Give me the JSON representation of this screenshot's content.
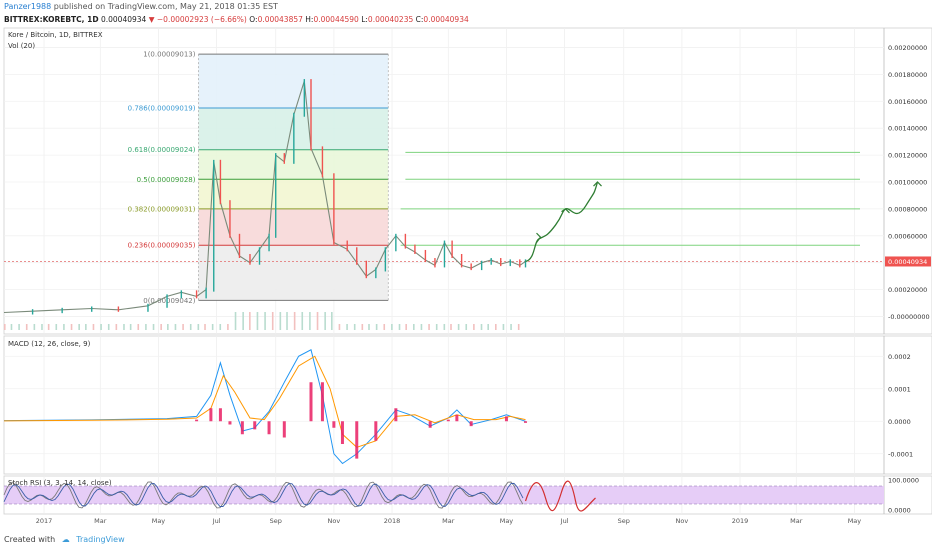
{
  "header": {
    "user": "Panzer1988",
    "published": "published on TradingView.com, May 21, 2018 01:35 EST",
    "symbol": "BITTREX:KOREBTC, 1D",
    "last": "0.00040934",
    "arrow": "▼",
    "change": "−0.00002923 (−6.66%)",
    "o_label": "O:",
    "o": "0.00043857",
    "h_label": "H:",
    "h": "0.00044590",
    "l_label": "L:",
    "l": "0.00040235",
    "c_label": "C:",
    "c": "0.00040934"
  },
  "footer": {
    "created": "Created with",
    "brand": "TradingView"
  },
  "chart_data": [
    {
      "type": "line",
      "title": "Kore / Bitcoin, 1D, BITTREX",
      "sub_label": "Vol (20)",
      "ylim": [
        -0.0001,
        0.0021
      ],
      "y_ticks": [
        "0.00200000",
        "0.00180000",
        "0.00160000",
        "0.00140000",
        "0.00120000",
        "0.00100000",
        "0.00080000",
        "0.00060000",
        "0.00040000",
        "0.00020000",
        "-0.00000000"
      ],
      "y_tick_values": [
        0.002,
        0.0018,
        0.0016,
        0.0014,
        0.0012,
        0.001,
        0.0008,
        0.0006,
        0.0004,
        0.0002,
        0
      ],
      "last_price_label": "0.00040934",
      "last_price": 0.00040934,
      "colors": {
        "candle_up": "#26a69a",
        "candle_down": "#ef5350",
        "last_line": "#e26b6b",
        "green_lines": "#7ed37e",
        "arrow": "#2e7d32"
      },
      "fib_levels": [
        {
          "label": "1(0.00009013)",
          "price": 0.00195,
          "color": "#777777",
          "fill": "#e3f1fb"
        },
        {
          "label": "0.786(0.00009019)",
          "price": 0.00155,
          "color": "#3c9bd3",
          "fill": "#d7f1e8"
        },
        {
          "label": "0.618(0.00009024)",
          "price": 0.00124,
          "color": "#39a871",
          "fill": "#e9f7d9"
        },
        {
          "label": "0.5(0.00009028)",
          "price": 0.00102,
          "color": "#3b9e3b",
          "fill": "#f2f6d2"
        },
        {
          "label": "0.382(0.00009031)",
          "price": 0.0008,
          "color": "#8b9c2a",
          "fill": "#f7d8d8"
        },
        {
          "label": "0.236(0.00009035)",
          "price": 0.00053,
          "color": "#d43b3b",
          "fill": "#ececec"
        },
        {
          "label": "0(0.00009042)",
          "price": 0.00012,
          "color": "#777777",
          "fill": ""
        }
      ],
      "horizontal_lines": [
        0.00122,
        0.00102,
        0.0008,
        0.00053
      ],
      "price_series": [
        [
          "2016-11-20",
          3e-05
        ],
        [
          "2016-12-20",
          4e-05
        ],
        [
          "2017-01-20",
          5e-05
        ],
        [
          "2017-02-20",
          6e-05
        ],
        [
          "2017-03-20",
          5e-05
        ],
        [
          "2017-04-20",
          8e-05
        ],
        [
          "2017-05-10",
          0.00015
        ],
        [
          "2017-05-25",
          0.00018
        ],
        [
          "2017-06-10",
          0.00015
        ],
        [
          "2017-06-20",
          0.0002
        ],
        [
          "2017-06-28",
          0.00115
        ],
        [
          "2017-07-05",
          0.00085
        ],
        [
          "2017-07-15",
          0.0006
        ],
        [
          "2017-07-25",
          0.00045
        ],
        [
          "2017-08-05",
          0.0004
        ],
        [
          "2017-08-15",
          0.0005
        ],
        [
          "2017-08-25",
          0.0006
        ],
        [
          "2017-09-01",
          0.0012
        ],
        [
          "2017-09-10",
          0.00115
        ],
        [
          "2017-09-20",
          0.0015
        ],
        [
          "2017-10-01",
          0.00175
        ],
        [
          "2017-10-08",
          0.00125
        ],
        [
          "2017-10-20",
          0.00105
        ],
        [
          "2017-11-01",
          0.00055
        ],
        [
          "2017-11-15",
          0.0005
        ],
        [
          "2017-11-25",
          0.0004
        ],
        [
          "2017-12-05",
          0.0003
        ],
        [
          "2017-12-15",
          0.00035
        ],
        [
          "2017-12-25",
          0.0005
        ],
        [
          "2018-01-05",
          0.0006
        ],
        [
          "2018-01-15",
          0.00052
        ],
        [
          "2018-01-25",
          0.00048
        ],
        [
          "2018-02-05",
          0.00042
        ],
        [
          "2018-02-15",
          0.00038
        ],
        [
          "2018-02-25",
          0.00055
        ],
        [
          "2018-03-05",
          0.00045
        ],
        [
          "2018-03-15",
          0.00038
        ],
        [
          "2018-03-25",
          0.00036
        ],
        [
          "2018-04-05",
          0.0004
        ],
        [
          "2018-04-15",
          0.00042
        ],
        [
          "2018-04-25",
          0.00039
        ],
        [
          "2018-05-05",
          0.00041
        ],
        [
          "2018-05-15",
          0.00038
        ],
        [
          "2018-05-21",
          0.00041
        ]
      ],
      "x_range": [
        "2016-11-20",
        "2019-06-01"
      ]
    },
    {
      "type": "line",
      "title": "MACD (12, 26, close, 9)",
      "ylim": [
        -0.00015,
        0.00025
      ],
      "y_ticks": [
        "0.0002",
        "0.0001",
        "0.0000",
        "-0.0001"
      ],
      "y_tick_values": [
        0.0002,
        0.0001,
        0,
        -0.0001
      ],
      "colors": {
        "macd": "#2196f3",
        "signal": "#ff9800",
        "hist": "#e91e63"
      },
      "macd_series": [
        [
          "2016-11-20",
          2e-06
        ],
        [
          "2017-02-20",
          4e-06
        ],
        [
          "2017-05-10",
          8e-06
        ],
        [
          "2017-06-10",
          1.5e-05
        ],
        [
          "2017-06-25",
          8e-05
        ],
        [
          "2017-07-05",
          0.00018
        ],
        [
          "2017-07-15",
          8e-05
        ],
        [
          "2017-07-28",
          -3e-05
        ],
        [
          "2017-08-10",
          -2e-05
        ],
        [
          "2017-08-25",
          3e-05
        ],
        [
          "2017-09-10",
          0.00012
        ],
        [
          "2017-09-25",
          0.0002
        ],
        [
          "2017-10-08",
          0.00022
        ],
        [
          "2017-10-20",
          8e-05
        ],
        [
          "2017-11-01",
          -0.0001
        ],
        [
          "2017-11-10",
          -0.00013
        ],
        [
          "2017-11-25",
          -0.0001
        ],
        [
          "2017-12-15",
          -4e-05
        ],
        [
          "2018-01-05",
          3.5e-05
        ],
        [
          "2018-01-20",
          2e-05
        ],
        [
          "2018-02-10",
          -1.5e-05
        ],
        [
          "2018-03-01",
          1e-05
        ],
        [
          "2018-03-10",
          3.5e-05
        ],
        [
          "2018-03-25",
          -1e-05
        ],
        [
          "2018-04-15",
          5e-06
        ],
        [
          "2018-05-01",
          2e-05
        ],
        [
          "2018-05-21",
          0.0
        ]
      ],
      "signal_series": [
        [
          "2016-11-20",
          1e-06
        ],
        [
          "2017-02-20",
          3e-06
        ],
        [
          "2017-05-10",
          6e-06
        ],
        [
          "2017-06-10",
          1e-05
        ],
        [
          "2017-06-25",
          4e-05
        ],
        [
          "2017-07-08",
          0.00014
        ],
        [
          "2017-07-20",
          9e-05
        ],
        [
          "2017-08-05",
          1e-05
        ],
        [
          "2017-08-20",
          5e-06
        ],
        [
          "2017-09-05",
          7e-05
        ],
        [
          "2017-09-25",
          0.00017
        ],
        [
          "2017-10-12",
          0.0002
        ],
        [
          "2017-10-28",
          0.0001
        ],
        [
          "2017-11-10",
          -4e-05
        ],
        [
          "2017-11-25",
          -8e-05
        ],
        [
          "2017-12-15",
          -6e-05
        ],
        [
          "2018-01-05",
          1.5e-05
        ],
        [
          "2018-01-25",
          2e-05
        ],
        [
          "2018-02-15",
          -5e-06
        ],
        [
          "2018-03-10",
          2e-05
        ],
        [
          "2018-03-28",
          5e-06
        ],
        [
          "2018-04-20",
          5e-06
        ],
        [
          "2018-05-05",
          1.5e-05
        ],
        [
          "2018-05-21",
          5e-06
        ]
      ]
    },
    {
      "type": "line",
      "title": "Stoch RSI (3, 3, 14, 14, close)",
      "ylim": [
        0,
        100
      ],
      "y_ticks": [
        "100.0000",
        "0.0000"
      ],
      "y_tick_values": [
        100,
        0
      ],
      "band": [
        80,
        20
      ],
      "colors": {
        "k": "#7a7a7a",
        "d": "#3b5ea8",
        "band_fill": "#e6cdf7",
        "projection": "#d32f2f"
      }
    }
  ],
  "x_axis": {
    "ticks": [
      "2017",
      "Mar",
      "May",
      "Jul",
      "Sep",
      "Nov",
      "2018",
      "Mar",
      "May",
      "Jul",
      "Sep",
      "Nov",
      "2019",
      "Mar",
      "May"
    ],
    "tick_dates": [
      "2017-01-01",
      "2017-03-01",
      "2017-05-01",
      "2017-07-01",
      "2017-09-01",
      "2017-11-01",
      "2018-01-01",
      "2018-03-01",
      "2018-05-01",
      "2018-07-01",
      "2018-09-01",
      "2018-11-01",
      "2019-01-01",
      "2019-03-01",
      "2019-05-01"
    ]
  }
}
